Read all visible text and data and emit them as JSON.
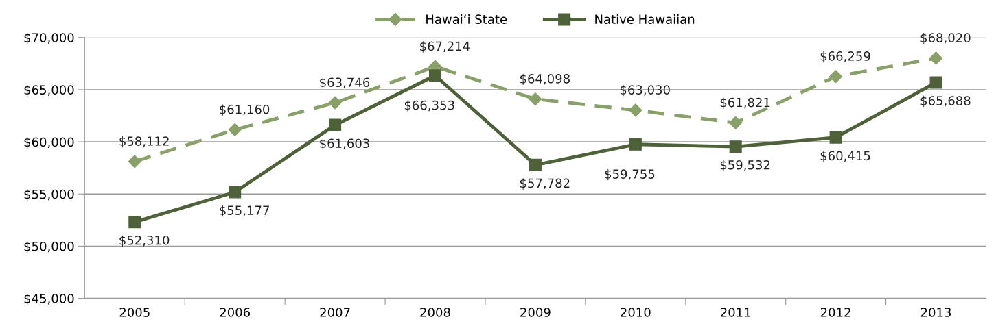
{
  "chart_data": {
    "type": "line",
    "categories": [
      "2005",
      "2006",
      "2007",
      "2008",
      "2009",
      "2010",
      "2011",
      "2012",
      "2013"
    ],
    "series": [
      {
        "name": "Hawai‘i State",
        "color": "#89a068",
        "marker": "diamond",
        "line_style": "dashed",
        "values": [
          58112,
          61160,
          63746,
          67214,
          64098,
          63030,
          61821,
          66259,
          68020
        ],
        "value_labels": [
          "$58,112",
          "$61,160",
          "$63,746",
          "$67,214",
          "$64,098",
          "$63,030",
          "$61,821",
          "$66,259",
          "$68,020"
        ]
      },
      {
        "name": "Native Hawaiian",
        "color": "#4f6139",
        "marker": "square",
        "line_style": "solid",
        "values": [
          52310,
          55177,
          61603,
          66353,
          57782,
          59755,
          59532,
          60415,
          65688
        ],
        "value_labels": [
          "$52,310",
          "$55,177",
          "$61,603",
          "$66,353",
          "$57,782",
          "$59,755",
          "$59,532",
          "$60,415",
          "$65,688"
        ]
      }
    ],
    "ylim": [
      45000,
      70000
    ],
    "yticks": [
      {
        "value": 45000,
        "label": "$45,000"
      },
      {
        "value": 50000,
        "label": "$50,000"
      },
      {
        "value": 55000,
        "label": "$55,000"
      },
      {
        "value": 60000,
        "label": "$60,000"
      },
      {
        "value": 65000,
        "label": "$65,000"
      },
      {
        "value": 70000,
        "label": "$70,000"
      }
    ],
    "grid": "y",
    "legend": "top"
  }
}
